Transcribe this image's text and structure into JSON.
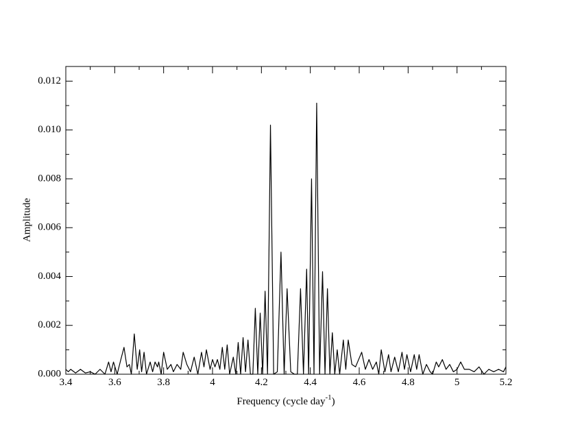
{
  "chart_data": {
    "type": "line",
    "y_label": "Amplitude",
    "x_label": {
      "text": "Frequency (cycle day",
      "superscript": "-1",
      "suffix": ")"
    },
    "color": "#000000",
    "xlim": [
      3.4,
      5.2
    ],
    "xticks": [
      3.4,
      3.6,
      3.8,
      4,
      4.2,
      4.4,
      4.6,
      4.8,
      5,
      5.2
    ],
    "ylim": [
      0,
      0.0126
    ],
    "yticks": [
      {
        "value": 0,
        "label": "0.000"
      },
      0.002,
      0.004,
      0.006,
      0.008,
      {
        "value": 0.01,
        "label": "0.010"
      },
      0.012
    ],
    "x": [
      3.4,
      3.41,
      3.42,
      3.44,
      3.46,
      3.48,
      3.5,
      3.52,
      3.54,
      3.56,
      3.575,
      3.585,
      3.595,
      3.61,
      3.625,
      3.638,
      3.65,
      3.66,
      3.668,
      3.68,
      3.692,
      3.702,
      3.71,
      3.72,
      3.73,
      3.745,
      3.755,
      3.765,
      3.775,
      3.78,
      3.79,
      3.8,
      3.815,
      3.83,
      3.84,
      3.855,
      3.87,
      3.88,
      3.895,
      3.91,
      3.925,
      3.94,
      3.955,
      3.965,
      3.975,
      3.99,
      4,
      4.01,
      4.02,
      4.03,
      4.04,
      4.05,
      4.06,
      4.07,
      4.085,
      4.095,
      4.105,
      4.115,
      4.125,
      4.135,
      4.145,
      4.155,
      4.165,
      4.175,
      4.185,
      4.195,
      4.205,
      4.215,
      4.225,
      4.237,
      4.25,
      4.265,
      4.28,
      4.293,
      4.305,
      4.32,
      4.335,
      4.347,
      4.36,
      4.372,
      4.385,
      4.393,
      4.405,
      4.415,
      4.426,
      4.438,
      4.45,
      4.46,
      4.47,
      4.48,
      4.49,
      4.5,
      4.51,
      4.52,
      4.535,
      4.545,
      4.555,
      4.57,
      4.585,
      4.61,
      4.625,
      4.64,
      4.655,
      4.67,
      4.68,
      4.69,
      4.705,
      4.72,
      4.73,
      4.745,
      4.76,
      4.775,
      4.785,
      4.795,
      4.81,
      4.825,
      4.835,
      4.845,
      4.86,
      4.875,
      4.89,
      4.9,
      4.915,
      4.925,
      4.94,
      4.955,
      4.97,
      4.985,
      5,
      5.015,
      5.03,
      5.05,
      5.07,
      5.09,
      5.11,
      5.13,
      5.15,
      5.17,
      5.19,
      5.2
    ],
    "values": [
      0.0002,
      0.0001,
      0.0002,
      5e-05,
      0.0002,
      5e-05,
      0.0001,
      0,
      0.0002,
      0,
      0.0005,
      0.0001,
      0.0005,
      0,
      0.0006,
      0.0011,
      0.0003,
      0.0004,
      0,
      0.00165,
      0.0002,
      0.001,
      0.0001,
      0.0009,
      0,
      0.0005,
      0.0001,
      0.0005,
      0.0003,
      0.0005,
      0,
      0.0009,
      0.0002,
      0.0004,
      0.0001,
      0.0004,
      0.0002,
      0.0009,
      0.0004,
      0.0001,
      0.0007,
      0,
      0.0009,
      0.0003,
      0.001,
      0.0002,
      0.0006,
      0.0003,
      0.0006,
      0.0002,
      0.0011,
      0.0002,
      0.0012,
      0,
      0.0007,
      0,
      0.0013,
      0,
      0.0015,
      0.0001,
      0.0014,
      0,
      0,
      0.0027,
      0,
      0.0025,
      0,
      0.0034,
      0,
      0.0102,
      0,
      0.0001,
      0.005,
      0,
      0.0035,
      0.0001,
      0,
      0,
      0.0035,
      0,
      0.0043,
      0,
      0.008,
      0,
      0.0111,
      0,
      0.0042,
      0,
      0.0035,
      0,
      0.0017,
      0,
      0.001,
      0,
      0.0014,
      0.0002,
      0.0014,
      0.0004,
      0.0003,
      0.0009,
      0.0002,
      0.0006,
      0.0002,
      0.0005,
      0,
      0.001,
      0.0001,
      0.0008,
      0.0001,
      0.0007,
      0.0001,
      0.0009,
      0.0002,
      0.0008,
      0.0001,
      0.0008,
      0.0002,
      0.0008,
      0,
      0.0004,
      0.0001,
      0,
      0.0005,
      0.0003,
      0.0006,
      0.0002,
      0.0004,
      0.0001,
      0.0002,
      0.0005,
      0.0002,
      0.0002,
      0.0001,
      0.0003,
      0,
      0.0002,
      0.0001,
      0.0002,
      0.0001,
      0.0003
    ]
  }
}
